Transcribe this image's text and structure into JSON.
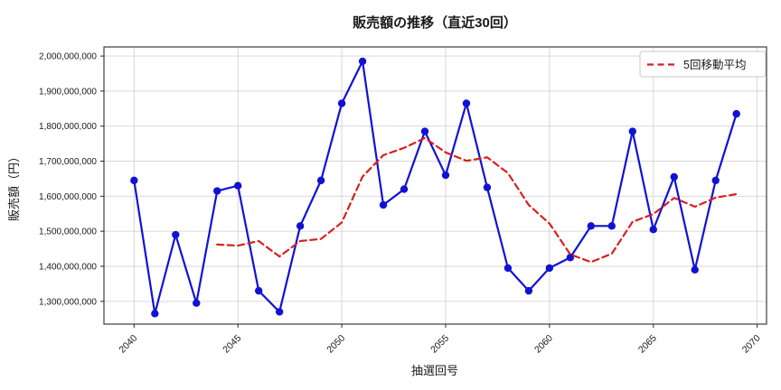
{
  "chart_data": {
    "type": "line",
    "title": "販売額の推移（直近30回）",
    "xlabel": "抽選回号",
    "ylabel": "販売額（円）",
    "x": [
      2040,
      2041,
      2042,
      2043,
      2044,
      2045,
      2046,
      2047,
      2048,
      2049,
      2050,
      2051,
      2052,
      2053,
      2054,
      2055,
      2056,
      2057,
      2058,
      2059,
      2060,
      2061,
      2062,
      2063,
      2064,
      2065,
      2066,
      2067,
      2068,
      2069
    ],
    "series": [
      {
        "name": "販売額",
        "color": "#1111d6",
        "line_style": "solid",
        "marker": "circle",
        "x": [
          2040,
          2041,
          2042,
          2043,
          2044,
          2045,
          2046,
          2047,
          2048,
          2049,
          2050,
          2051,
          2052,
          2053,
          2054,
          2055,
          2056,
          2057,
          2058,
          2059,
          2060,
          2061,
          2062,
          2063,
          2064,
          2065,
          2066,
          2067,
          2068,
          2069
        ],
        "values": [
          1645000000,
          1265000000,
          1490000000,
          1295000000,
          1615000000,
          1630000000,
          1330000000,
          1270000000,
          1515000000,
          1645000000,
          1865000000,
          1985000000,
          1575000000,
          1620000000,
          1785000000,
          1660000000,
          1865000000,
          1625000000,
          1395000000,
          1330000000,
          1395000000,
          1425000000,
          1515000000,
          1515000000,
          1785000000,
          1505000000,
          1655000000,
          1390000000,
          1645000000,
          1835000000
        ]
      },
      {
        "name": "5回移動平均",
        "color": "#d81f1f",
        "line_style": "dashed",
        "marker": "none",
        "x": [
          2044,
          2045,
          2046,
          2047,
          2048,
          2049,
          2050,
          2051,
          2052,
          2053,
          2054,
          2055,
          2056,
          2057,
          2058,
          2059,
          2060,
          2061,
          2062,
          2063,
          2064,
          2065,
          2066,
          2067,
          2068,
          2069
        ],
        "values": [
          1462000000,
          1459000000,
          1472000000,
          1428000000,
          1472000000,
          1478000000,
          1525000000,
          1656000000,
          1717000000,
          1738000000,
          1766000000,
          1725000000,
          1701000000,
          1711000000,
          1666000000,
          1575000000,
          1522000000,
          1434000000,
          1412000000,
          1436000000,
          1527000000,
          1549000000,
          1595000000,
          1570000000,
          1596000000,
          1606000000
        ]
      }
    ],
    "xticks": [
      2040,
      2045,
      2050,
      2055,
      2060,
      2065,
      2070
    ],
    "yticks": [
      1300000000,
      1400000000,
      1500000000,
      1600000000,
      1700000000,
      1800000000,
      1900000000,
      2000000000
    ],
    "xlim": [
      2038.55,
      2070.45
    ],
    "ylim": [
      1235000000,
      2026000000
    ],
    "grid": true,
    "legend": {
      "position": "upper right",
      "entries": [
        "5回移動平均"
      ]
    }
  },
  "style": {
    "grid_color": "#d3d3d3",
    "spine_color": "#2a2a2a",
    "legend_border_color": "#c9c9c9",
    "background": "#ffffff"
  }
}
